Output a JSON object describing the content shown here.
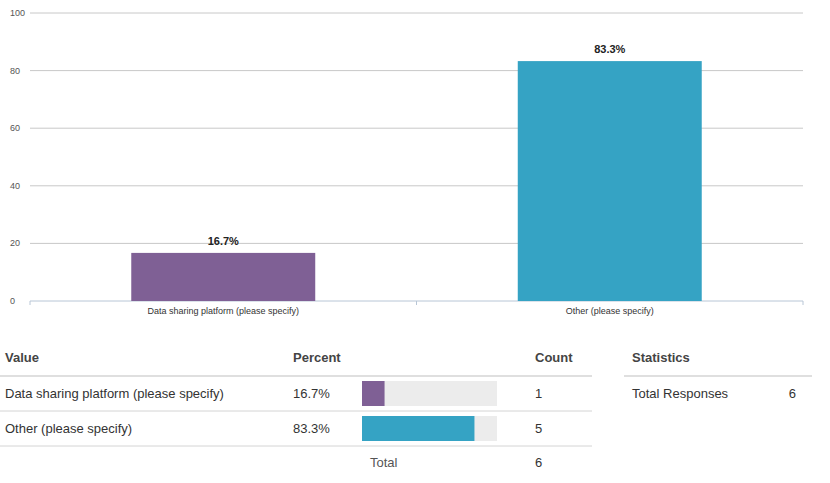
{
  "chart_data": {
    "type": "bar",
    "categories": [
      "Data sharing platform (please specify)",
      "Other (please specify)"
    ],
    "values": [
      16.7,
      83.3
    ],
    "value_labels": [
      "16.7%",
      "83.3%"
    ],
    "colors": [
      "#7f6095",
      "#35a3c4"
    ],
    "ylim": [
      0,
      100
    ],
    "yticks": [
      0,
      20,
      40,
      60,
      80,
      100
    ],
    "grid": true,
    "data_labels": true
  },
  "table": {
    "headers": [
      "Value",
      "Percent",
      "Count"
    ],
    "rows": [
      {
        "value": "Data sharing platform (please specify)",
        "percent": 16.7,
        "percent_label": "16.7%",
        "count": 1
      },
      {
        "value": "Other (please specify)",
        "percent": 83.3,
        "percent_label": "83.3%",
        "count": 5
      }
    ],
    "total_label": "Total",
    "total": 6
  },
  "statistics": {
    "title": "Statistics",
    "rows": [
      {
        "label": "Total Responses",
        "value": 6
      }
    ]
  }
}
